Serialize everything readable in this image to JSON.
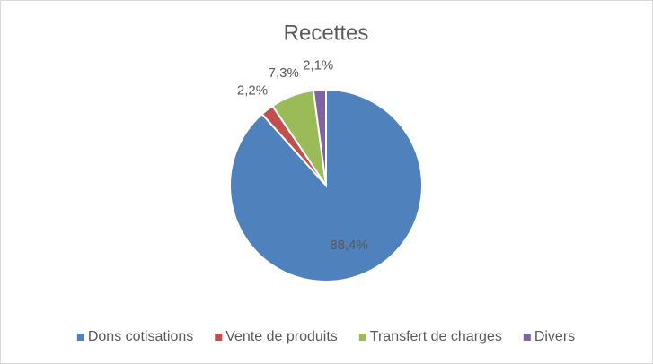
{
  "chart_data": {
    "type": "pie",
    "title": "Recettes",
    "categories": [
      "Dons cotisations",
      "Vente de produits",
      "Transfert de charges",
      "Divers"
    ],
    "values": [
      88.4,
      2.2,
      7.3,
      2.1
    ],
    "value_labels": [
      "88,4%",
      "2,2%",
      "7,3%",
      "2,1%"
    ],
    "colors": [
      "#4f81bd",
      "#c0504d",
      "#9bbb59",
      "#8064a2"
    ],
    "legend": "bottom"
  }
}
